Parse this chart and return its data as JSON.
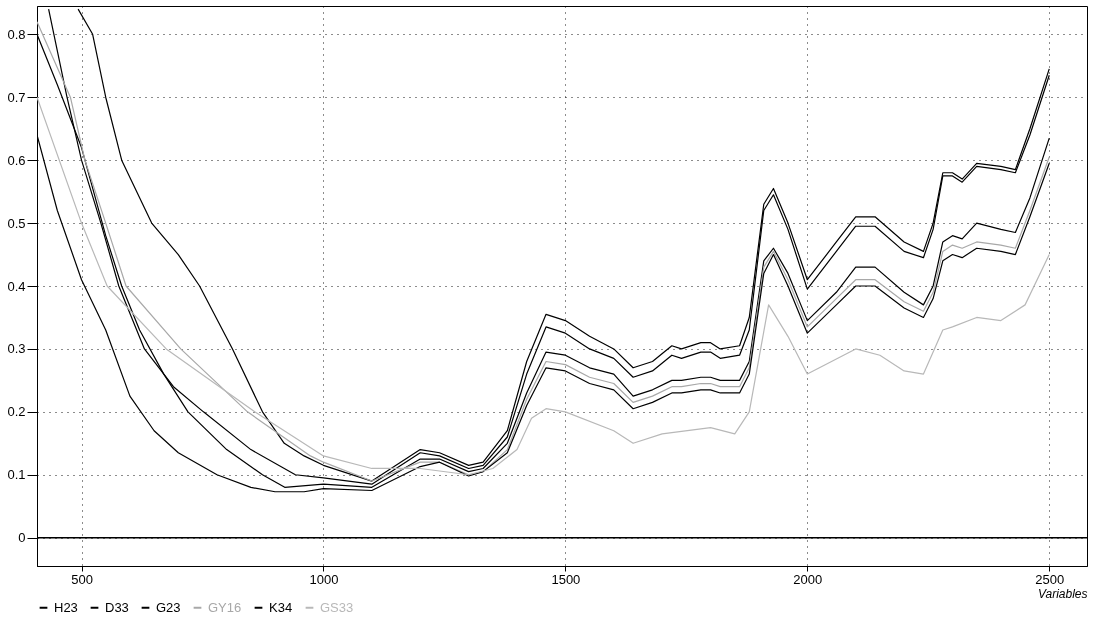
{
  "chart_data": {
    "type": "line",
    "xlabel": "Variables",
    "xlim": [
      408,
      2578
    ],
    "ylim": [
      -0.045,
      0.845
    ],
    "xticks": [
      500,
      1000,
      1500,
      2000,
      2500
    ],
    "yticks": [
      0,
      0.1,
      0.2,
      0.3,
      0.4,
      0.5,
      0.6,
      0.7,
      0.8
    ],
    "grid": true,
    "legend": "bottom",
    "ref_lines": [
      {
        "axis": "y",
        "value": 0,
        "color": "#000000"
      }
    ],
    "series": [
      {
        "name": "H23",
        "color": "#000000",
        "x": [
          493,
          523,
          550,
          583,
          645,
          700,
          744,
          812,
          874,
          919,
          960,
          1000,
          1100,
          1200,
          1240,
          1300,
          1330,
          1380,
          1420,
          1460,
          1500,
          1550,
          1600,
          1640,
          1680,
          1720,
          1740,
          1780,
          1800,
          1820,
          1860,
          1880,
          1910,
          1930,
          1960,
          2000,
          2060,
          2100,
          2140,
          2200,
          2240,
          2260,
          2280,
          2300,
          2320,
          2350,
          2400,
          2430,
          2460,
          2500
        ],
        "values": [
          0.84,
          0.8,
          0.7,
          0.6,
          0.5,
          0.45,
          0.4,
          0.3,
          0.2,
          0.15,
          0.13,
          0.115,
          0.09,
          0.14,
          0.135,
          0.115,
          0.12,
          0.17,
          0.28,
          0.355,
          0.345,
          0.32,
          0.3,
          0.27,
          0.28,
          0.305,
          0.3,
          0.31,
          0.31,
          0.3,
          0.305,
          0.35,
          0.53,
          0.555,
          0.5,
          0.41,
          0.47,
          0.51,
          0.51,
          0.47,
          0.455,
          0.5,
          0.58,
          0.58,
          0.57,
          0.595,
          0.59,
          0.585,
          0.65,
          0.745
        ]
      },
      {
        "name": "D33",
        "color": "#000000",
        "x": [
          432,
          470,
          500,
          540,
          577,
          630,
          690,
          752,
          850,
          942,
          1000,
          1100,
          1200,
          1240,
          1300,
          1330,
          1380,
          1420,
          1460,
          1500,
          1550,
          1600,
          1640,
          1680,
          1720,
          1740,
          1780,
          1800,
          1820,
          1860,
          1880,
          1910,
          1930,
          1960,
          2000,
          2060,
          2100,
          2140,
          2200,
          2240,
          2260,
          2280,
          2300,
          2320,
          2350,
          2400,
          2430,
          2460,
          2500
        ],
        "values": [
          0.84,
          0.7,
          0.6,
          0.5,
          0.4,
          0.3,
          0.24,
          0.2,
          0.14,
          0.1,
          0.095,
          0.085,
          0.135,
          0.13,
          0.11,
          0.115,
          0.16,
          0.26,
          0.335,
          0.325,
          0.3,
          0.285,
          0.255,
          0.265,
          0.29,
          0.285,
          0.295,
          0.295,
          0.285,
          0.29,
          0.33,
          0.52,
          0.545,
          0.49,
          0.395,
          0.455,
          0.495,
          0.495,
          0.455,
          0.445,
          0.49,
          0.575,
          0.575,
          0.565,
          0.59,
          0.585,
          0.58,
          0.64,
          0.735
        ]
      },
      {
        "name": "G23",
        "color": "#000000",
        "x": [
          408,
          450,
          500,
          550,
          583,
          620,
          670,
          720,
          800,
          874,
          920,
          1000,
          1100,
          1200,
          1240,
          1300,
          1330,
          1380,
          1420,
          1460,
          1500,
          1550,
          1600,
          1640,
          1680,
          1720,
          1740,
          1780,
          1800,
          1820,
          1860,
          1880,
          1910,
          1930,
          1960,
          2000,
          2060,
          2100,
          2140,
          2200,
          2240,
          2260,
          2280,
          2300,
          2320,
          2350,
          2400,
          2430,
          2460,
          2500
        ],
        "values": [
          0.8,
          0.72,
          0.62,
          0.48,
          0.4,
          0.33,
          0.26,
          0.2,
          0.14,
          0.1,
          0.08,
          0.085,
          0.08,
          0.125,
          0.125,
          0.105,
          0.11,
          0.15,
          0.23,
          0.295,
          0.29,
          0.27,
          0.26,
          0.225,
          0.235,
          0.25,
          0.25,
          0.255,
          0.255,
          0.25,
          0.25,
          0.28,
          0.44,
          0.46,
          0.42,
          0.345,
          0.39,
          0.43,
          0.43,
          0.39,
          0.37,
          0.4,
          0.47,
          0.48,
          0.475,
          0.5,
          0.49,
          0.485,
          0.54,
          0.635
        ]
      },
      {
        "name": "GY16",
        "color": "#a8a8a8",
        "x": [
          408,
          477,
          507,
          550,
          592,
          705,
          843,
          973,
          1000,
          1100,
          1200,
          1240,
          1300,
          1330,
          1380,
          1420,
          1460,
          1500,
          1550,
          1600,
          1640,
          1680,
          1720,
          1740,
          1780,
          1800,
          1820,
          1860,
          1880,
          1910,
          1930,
          1960,
          2000,
          2060,
          2100,
          2140,
          2200,
          2240,
          2260,
          2280,
          2300,
          2320,
          2350,
          2400,
          2430,
          2460,
          2500
        ],
        "values": [
          0.82,
          0.7,
          0.6,
          0.5,
          0.4,
          0.3,
          0.2,
          0.13,
          0.12,
          0.09,
          0.12,
          0.12,
          0.1,
          0.105,
          0.14,
          0.22,
          0.28,
          0.275,
          0.255,
          0.245,
          0.215,
          0.225,
          0.24,
          0.24,
          0.245,
          0.245,
          0.24,
          0.24,
          0.27,
          0.43,
          0.455,
          0.41,
          0.335,
          0.38,
          0.41,
          0.41,
          0.375,
          0.36,
          0.39,
          0.455,
          0.465,
          0.46,
          0.47,
          0.465,
          0.46,
          0.52,
          0.605
        ]
      },
      {
        "name": "K34",
        "color": "#000000",
        "x": [
          408,
          450,
          500,
          550,
          600,
          650,
          700,
          780,
          850,
          900,
          960,
          1000,
          1100,
          1200,
          1240,
          1300,
          1330,
          1380,
          1420,
          1460,
          1500,
          1550,
          1600,
          1640,
          1680,
          1720,
          1740,
          1780,
          1800,
          1820,
          1860,
          1880,
          1910,
          1930,
          1960,
          2000,
          2060,
          2100,
          2140,
          2200,
          2240,
          2260,
          2280,
          2300,
          2320,
          2350,
          2400,
          2430,
          2460,
          2500
        ],
        "values": [
          0.64,
          0.52,
          0.41,
          0.33,
          0.225,
          0.17,
          0.135,
          0.1,
          0.08,
          0.073,
          0.073,
          0.078,
          0.075,
          0.113,
          0.12,
          0.098,
          0.105,
          0.135,
          0.21,
          0.27,
          0.265,
          0.245,
          0.235,
          0.205,
          0.215,
          0.23,
          0.23,
          0.235,
          0.235,
          0.23,
          0.23,
          0.26,
          0.42,
          0.45,
          0.4,
          0.325,
          0.37,
          0.4,
          0.4,
          0.365,
          0.35,
          0.38,
          0.44,
          0.45,
          0.445,
          0.46,
          0.455,
          0.45,
          0.51,
          0.595
        ]
      },
      {
        "name": "GS33",
        "color": "#b8b8b8",
        "x": [
          408,
          500,
          553,
          675,
          858,
          1000,
          1100,
          1200,
          1300,
          1350,
          1400,
          1430,
          1460,
          1500,
          1600,
          1640,
          1700,
          1800,
          1850,
          1880,
          1920,
          1960,
          2000,
          2050,
          2100,
          2150,
          2200,
          2240,
          2280,
          2300,
          2350,
          2400,
          2450,
          2500
        ],
        "values": [
          0.7,
          0.5,
          0.4,
          0.3,
          0.2,
          0.13,
          0.11,
          0.11,
          0.1,
          0.11,
          0.14,
          0.19,
          0.205,
          0.2,
          0.17,
          0.15,
          0.165,
          0.175,
          0.165,
          0.2,
          0.37,
          0.32,
          0.26,
          0.28,
          0.3,
          0.29,
          0.265,
          0.26,
          0.33,
          0.335,
          0.35,
          0.345,
          0.37,
          0.45
        ]
      }
    ]
  }
}
